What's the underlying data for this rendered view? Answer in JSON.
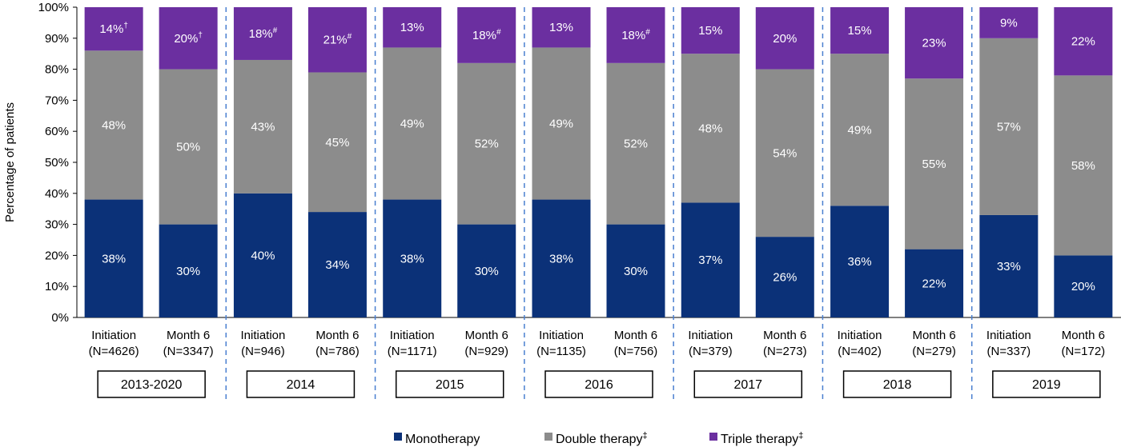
{
  "chart_data": {
    "type": "bar",
    "stacked": true,
    "ylabel": "Percentage of patients",
    "ylim": [
      0,
      100
    ],
    "yticks": [
      "0%",
      "10%",
      "20%",
      "30%",
      "40%",
      "50%",
      "60%",
      "70%",
      "80%",
      "90%",
      "100%"
    ],
    "grid": false,
    "legend_position": "bottom",
    "colors": {
      "mono": "#0b3178",
      "double": "#8c8c8c",
      "triple": "#6b2fa0",
      "divider": "#4a7fd0"
    },
    "legend": [
      {
        "key": "mono",
        "label": "Monotherapy",
        "sup": ""
      },
      {
        "key": "double",
        "label": "Double therapy",
        "sup": "‡"
      },
      {
        "key": "triple",
        "label": "Triple therapy",
        "sup": "‡"
      }
    ],
    "groups": [
      {
        "label": "2013-2020",
        "bars": [
          {
            "line1": "Initiation",
            "line2": "(N=4626)",
            "mono": 38,
            "double": 48,
            "triple": 14,
            "mono_label": "38%",
            "double_label": "48%",
            "triple_label": "14%",
            "triple_sup": "†"
          },
          {
            "line1": "Month 6",
            "line2": "(N=3347)",
            "mono": 30,
            "double": 50,
            "triple": 20,
            "mono_label": "30%",
            "double_label": "50%",
            "triple_label": "20%",
            "triple_sup": "†"
          }
        ]
      },
      {
        "label": "2014",
        "bars": [
          {
            "line1": "Initiation",
            "line2": "(N=946)",
            "mono": 40,
            "double": 43,
            "triple": 18,
            "mono_label": "40%",
            "double_label": "43%",
            "triple_label": "18%",
            "triple_sup": "#"
          },
          {
            "line1": "Month 6",
            "line2": "(N=786)",
            "mono": 34,
            "double": 45,
            "triple": 21,
            "mono_label": "34%",
            "double_label": "45%",
            "triple_label": "21%",
            "triple_sup": "#"
          }
        ]
      },
      {
        "label": "2015",
        "bars": [
          {
            "line1": "Initiation",
            "line2": "(N=1171)",
            "mono": 38,
            "double": 49,
            "triple": 13,
            "mono_label": "38%",
            "double_label": "49%",
            "triple_label": "13%",
            "triple_sup": ""
          },
          {
            "line1": "Month 6",
            "line2": "(N=929)",
            "mono": 30,
            "double": 52,
            "triple": 18,
            "mono_label": "30%",
            "double_label": "52%",
            "triple_label": "18%",
            "triple_sup": "#"
          }
        ]
      },
      {
        "label": "2016",
        "bars": [
          {
            "line1": "Initiation",
            "line2": "(N=1135)",
            "mono": 38,
            "double": 49,
            "triple": 13,
            "mono_label": "38%",
            "double_label": "49%",
            "triple_label": "13%",
            "triple_sup": ""
          },
          {
            "line1": "Month 6",
            "line2": "(N=756)",
            "mono": 30,
            "double": 52,
            "triple": 18,
            "mono_label": "30%",
            "double_label": "52%",
            "triple_label": "18%",
            "triple_sup": "#"
          }
        ]
      },
      {
        "label": "2017",
        "bars": [
          {
            "line1": "Initiation",
            "line2": "(N=379)",
            "mono": 37,
            "double": 48,
            "triple": 15,
            "mono_label": "37%",
            "double_label": "48%",
            "triple_label": "15%",
            "triple_sup": ""
          },
          {
            "line1": "Month 6",
            "line2": "(N=273)",
            "mono": 26,
            "double": 54,
            "triple": 20,
            "mono_label": "26%",
            "double_label": "54%",
            "triple_label": "20%",
            "triple_sup": ""
          }
        ]
      },
      {
        "label": "2018",
        "bars": [
          {
            "line1": "Initiation",
            "line2": "(N=402)",
            "mono": 36,
            "double": 49,
            "triple": 15,
            "mono_label": "36%",
            "double_label": "49%",
            "triple_label": "15%",
            "triple_sup": ""
          },
          {
            "line1": "Month 6",
            "line2": "(N=279)",
            "mono": 22,
            "double": 55,
            "triple": 23,
            "mono_label": "22%",
            "double_label": "55%",
            "triple_label": "23%",
            "triple_sup": ""
          }
        ]
      },
      {
        "label": "2019",
        "bars": [
          {
            "line1": "Initiation",
            "line2": "(N=337)",
            "mono": 33,
            "double": 57,
            "triple": 9,
            "mono_label": "33%",
            "double_label": "57%",
            "triple_label": "9%",
            "triple_sup": ""
          },
          {
            "line1": "Month 6",
            "line2": "(N=172)",
            "mono": 20,
            "double": 58,
            "triple": 22,
            "mono_label": "20%",
            "double_label": "58%",
            "triple_label": "22%",
            "triple_sup": ""
          }
        ]
      }
    ]
  }
}
